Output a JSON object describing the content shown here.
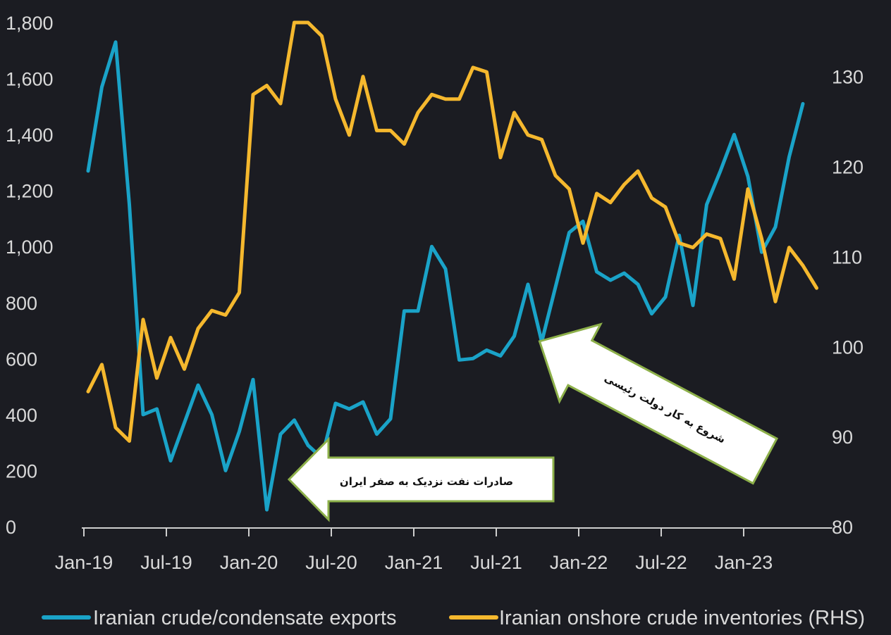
{
  "chart_data": {
    "type": "line",
    "title": "",
    "x": [
      "Jan-19",
      "Feb-19",
      "Mar-19",
      "Apr-19",
      "May-19",
      "Jun-19",
      "Jul-19",
      "Aug-19",
      "Sep-19",
      "Oct-19",
      "Nov-19",
      "Dec-19",
      "Jan-20",
      "Feb-20",
      "Mar-20",
      "Apr-20",
      "May-20",
      "Jun-20",
      "Jul-20",
      "Aug-20",
      "Sep-20",
      "Oct-20",
      "Nov-20",
      "Dec-20",
      "Jan-21",
      "Feb-21",
      "Mar-21",
      "Apr-21",
      "May-21",
      "Jun-21",
      "Jul-21",
      "Aug-21",
      "Sep-21",
      "Oct-21",
      "Nov-21",
      "Dec-21",
      "Jan-22",
      "Feb-22",
      "Mar-22",
      "Apr-22",
      "May-22",
      "Jun-22",
      "Jul-22",
      "Aug-22",
      "Sep-22",
      "Oct-22",
      "Nov-22",
      "Dec-22",
      "Jan-23",
      "Feb-23",
      "Mar-23",
      "Apr-23",
      "May-23",
      "Jun-23"
    ],
    "x_tick_labels": [
      "Jan-19",
      "Jul-19",
      "Jan-20",
      "Jul-20",
      "Jan-21",
      "Jul-21",
      "Jan-22",
      "Jul-22",
      "Jan-23"
    ],
    "y_left": {
      "range": [
        0,
        1800
      ],
      "ticks": [
        "0",
        "200",
        "400",
        "600",
        "800",
        "1,000",
        "1,200",
        "1,400",
        "1,600",
        "1,800"
      ]
    },
    "y_right": {
      "range": [
        80,
        136
      ],
      "ticks": [
        "80",
        "90",
        "100",
        "110",
        "120",
        "130"
      ]
    },
    "legend_position": "bottom",
    "grid": false,
    "series": [
      {
        "name": "Iranian crude/condensate exports",
        "axis": "left",
        "color": "#1aa3c8",
        "values": [
          1270,
          1570,
          1730,
          1150,
          400,
          420,
          235,
          370,
          505,
          400,
          200,
          340,
          525,
          60,
          330,
          380,
          290,
          245,
          440,
          420,
          445,
          330,
          385,
          770,
          770,
          1000,
          920,
          595,
          600,
          630,
          610,
          680,
          865,
          660,
          855,
          1050,
          1090,
          910,
          880,
          905,
          865,
          760,
          820,
          1040,
          790,
          1150,
          1270,
          1400,
          1250,
          980,
          1070,
          1320,
          1510,
          null
        ]
      },
      {
        "name": "Iranian onshore crude inventories (RHS)",
        "axis": "right",
        "color": "#f5b82e",
        "values": [
          95,
          98,
          91,
          89.5,
          103,
          96.5,
          101,
          97.5,
          102,
          104,
          103.5,
          106,
          128,
          129,
          127,
          136,
          136,
          134.5,
          127.5,
          123.5,
          130,
          124,
          124,
          122.5,
          126,
          128,
          127.5,
          127.5,
          131,
          130.5,
          121,
          126,
          123.5,
          123,
          119,
          117.5,
          111.5,
          117,
          116,
          118,
          119.5,
          116.5,
          115.5,
          111.5,
          111,
          112.5,
          112,
          107.5,
          117.5,
          112,
          105,
          111,
          109,
          106.5
        ]
      }
    ],
    "annotations": [
      {
        "text": "صادرات نفت نزدیک به صفر ایران"
      },
      {
        "text": "شروع به کار دولت رئیسی"
      }
    ]
  }
}
